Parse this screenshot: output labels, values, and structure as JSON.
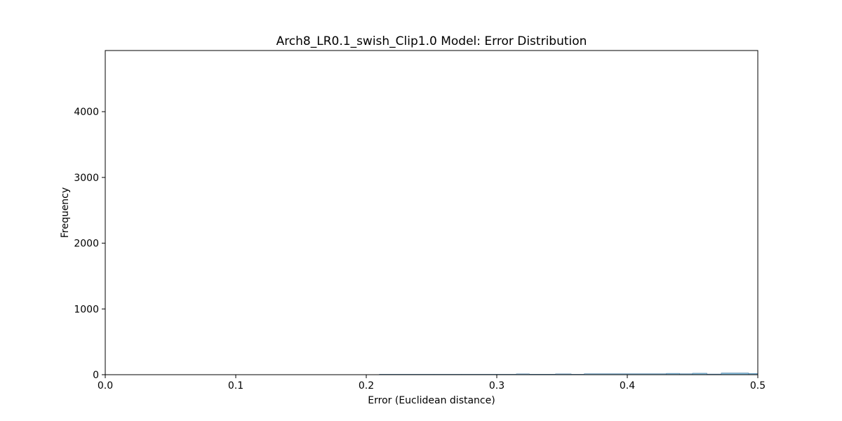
{
  "chart_data": {
    "type": "bar",
    "title": "Arch8_LR0.1_swish_Clip1.0 Model: Error Distribution",
    "xlabel": "Error (Euclidean distance)",
    "ylabel": "Frequency",
    "xlim": [
      0.0,
      0.5
    ],
    "ylim": [
      0,
      4930
    ],
    "grid": false,
    "x_ticks": [
      {
        "value": 0.0,
        "label": "0.0"
      },
      {
        "value": 0.1,
        "label": "0.1"
      },
      {
        "value": 0.2,
        "label": "0.2"
      },
      {
        "value": 0.3,
        "label": "0.3"
      },
      {
        "value": 0.4,
        "label": "0.4"
      },
      {
        "value": 0.5,
        "label": "0.5"
      }
    ],
    "y_ticks": [
      {
        "value": 0,
        "label": "0"
      },
      {
        "value": 1000,
        "label": "1000"
      },
      {
        "value": 2000,
        "label": "2000"
      },
      {
        "value": 3000,
        "label": "3000"
      },
      {
        "value": 4000,
        "label": "4000"
      }
    ],
    "bar_color": "#87bcd9",
    "bar_edge_color": "#4a7fa8",
    "bins": [
      {
        "x0": 0.21,
        "x1": 0.252,
        "value": 3
      },
      {
        "x0": 0.252,
        "x1": 0.273,
        "value": 1
      },
      {
        "x0": 0.273,
        "x1": 0.315,
        "value": 5
      },
      {
        "x0": 0.315,
        "x1": 0.325,
        "value": 12
      },
      {
        "x0": 0.325,
        "x1": 0.345,
        "value": 7
      },
      {
        "x0": 0.345,
        "x1": 0.357,
        "value": 12
      },
      {
        "x0": 0.357,
        "x1": 0.367,
        "value": 6
      },
      {
        "x0": 0.367,
        "x1": 0.43,
        "value": 14
      },
      {
        "x0": 0.43,
        "x1": 0.44,
        "value": 20
      },
      {
        "x0": 0.44,
        "x1": 0.45,
        "value": 14
      },
      {
        "x0": 0.45,
        "x1": 0.461,
        "value": 22
      },
      {
        "x0": 0.461,
        "x1": 0.472,
        "value": 10
      },
      {
        "x0": 0.472,
        "x1": 0.493,
        "value": 26
      },
      {
        "x0": 0.493,
        "x1": 0.5,
        "value": 18
      }
    ]
  }
}
